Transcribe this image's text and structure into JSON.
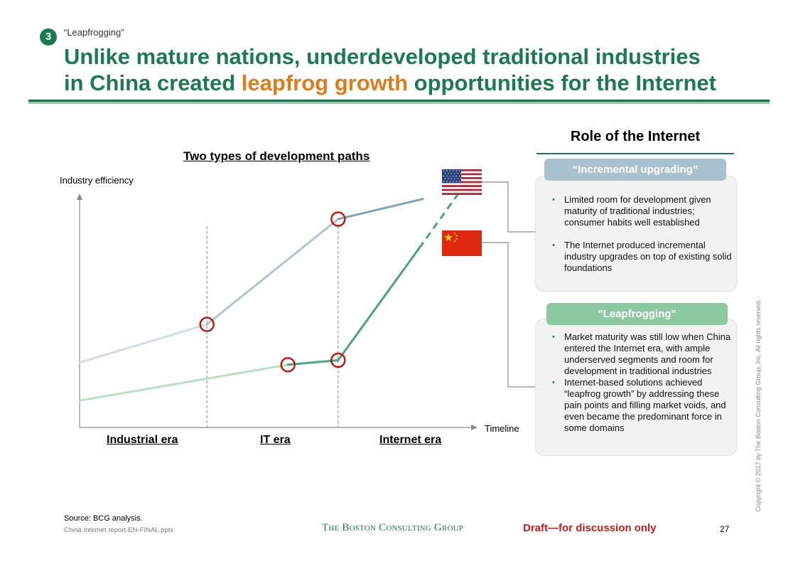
{
  "header": {
    "section_number": "3",
    "tracker": "“Leapfrogging”",
    "title_line1": "Unlike mature nations, underdeveloped traditional industries",
    "title_line2_pre": "in China created ",
    "title_line2_highlight": "leapfrog growth",
    "title_line2_post": " opportunities for the Internet"
  },
  "colors": {
    "brand_green": "#1d7a50",
    "highlight_orange": "#e07b1a",
    "us_line": "#7fa3b8",
    "china_line": "#4aa57a",
    "marker_red": "#c0140c",
    "draft_red": "#c81e1e"
  },
  "chart_data": {
    "type": "line",
    "title": "Two types of development paths",
    "ylabel": "Industry efficiency",
    "xlabel": "Timeline",
    "x_range": [
      0,
      10
    ],
    "y_range": [
      0,
      10
    ],
    "grid": false,
    "era_boundaries": [
      3.3,
      6.7
    ],
    "eras": [
      "Industrial era",
      "IT era",
      "Internet era"
    ],
    "series": [
      {
        "name": "Mature nations (US)",
        "flag": "us-flag",
        "points": [
          [
            0,
            2.9
          ],
          [
            3.3,
            4.6
          ],
          [
            6.7,
            9.3
          ],
          [
            8.9,
            10.2
          ]
        ],
        "dashed_from": null
      },
      {
        "name": "China",
        "flag": "china-flag",
        "points": [
          [
            0,
            1.2
          ],
          [
            5.4,
            2.8
          ],
          [
            6.7,
            3.0
          ],
          [
            8.8,
            8.0
          ],
          [
            9.8,
            10.4
          ]
        ],
        "dashed_from": 3
      }
    ],
    "highlight_markers": [
      [
        3.3,
        4.6
      ],
      [
        6.7,
        9.3
      ],
      [
        5.4,
        2.8
      ],
      [
        6.7,
        3.0
      ]
    ]
  },
  "role": {
    "title": "Role of the Internet",
    "incremental": {
      "label": "“Incremental upgrading”",
      "bullets": [
        "Limited room for development given maturity of traditional industries; consumer habits well established",
        "The Internet produced incremental industry upgrades on top of existing solid foundations"
      ]
    },
    "leapfrogging": {
      "label": "\"Leapfrogging\"",
      "bullets": [
        "Market maturity was still low when China entered the Internet era, with ample underserved segments and room for development in traditional industries",
        "Internet-based solutions achieved “leapfrog growth” by addressing these pain points and filling market voids, and even became the predominant force in some domains"
      ]
    }
  },
  "footer": {
    "source": "Source: BCG analysis.",
    "file": "China Internet report-EN-FINAL.pptx",
    "logo": "The Boston Consulting Group",
    "draft": "Draft—for discussion only",
    "page": "27",
    "copyright": "Copyright © 2017 by The Boston Consulting Group, Inc. All rights reserved."
  }
}
